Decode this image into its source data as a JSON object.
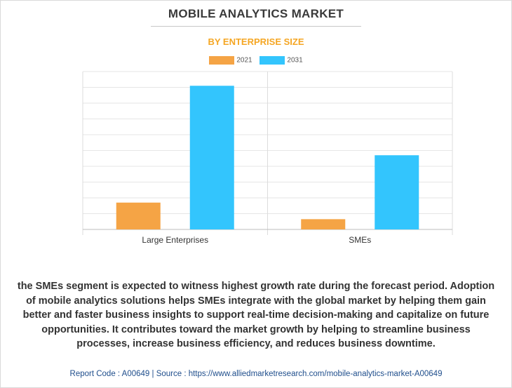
{
  "title": "MOBILE ANALYTICS MARKET",
  "subtitle": "BY ENTERPRISE SIZE",
  "colors": {
    "2021": "#f5a445",
    "2031": "#33c5fd",
    "subtitle": "#f5a623",
    "footer": "#1f4e8c"
  },
  "chart_data": {
    "type": "bar",
    "title": "",
    "xlabel": "",
    "ylabel": "",
    "categories": [
      "Large Enterprises",
      "SMEs"
    ],
    "series": [
      {
        "name": "2021",
        "values": [
          1.7,
          0.65
        ]
      },
      {
        "name": "2031",
        "values": [
          9.1,
          4.7
        ]
      }
    ],
    "ylim": [
      0,
      10
    ],
    "grid": true,
    "legend": "top"
  },
  "description": "the SMEs segment is expected to witness highest growth rate during the forecast period. Adoption of mobile analytics solutions helps SMEs integrate with the global market by helping them gain better and faster business insights to support real-time decision-making and capitalize on future opportunities. It contributes toward the market growth by helping to streamline business processes, increase business efficiency, and reduces business downtime.",
  "footer": "Report Code : A00649  |  Source : https://www.alliedmarketresearch.com/mobile-analytics-market-A00649"
}
